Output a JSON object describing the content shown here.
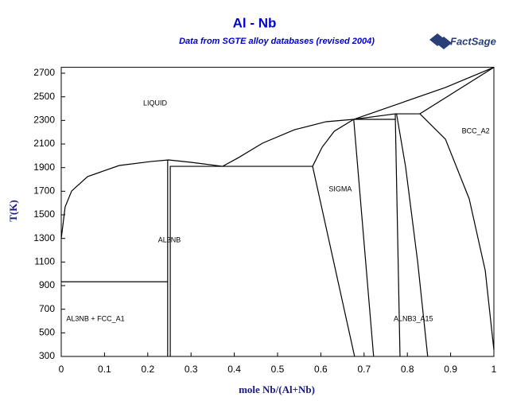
{
  "chart_data": {
    "type": "line",
    "title": "Al - Nb",
    "subtitle": "Data from SGTE alloy databases (revised 2004)",
    "logo": "FactSage",
    "x_label": "mole Nb/(Al+Nb)",
    "y_label": "T(K)",
    "xlim": [
      0,
      1
    ],
    "xticks": [
      0,
      0.1,
      0.2,
      0.3,
      0.4,
      0.5,
      0.6,
      0.7,
      0.8,
      0.9,
      1
    ],
    "ylim": [
      300,
      2750
    ],
    "yticks": [
      300,
      500,
      700,
      900,
      1100,
      1300,
      1500,
      1700,
      1900,
      2100,
      2300,
      2500,
      2700
    ],
    "line_color": "#000000",
    "series": [
      {
        "x": [
          0,
          0.009,
          0.024,
          0.061,
          0.134,
          0.208,
          0.248,
          0.3,
          0.373,
          0.41,
          0.465,
          0.539,
          0.612,
          0.676
        ],
        "values": [
          1298,
          1567,
          1702,
          1824,
          1918,
          1952,
          1965,
          1945,
          1911,
          1985,
          2107,
          2221,
          2289,
          2309
        ]
      },
      {
        "x": [
          0.676,
          0.772,
          0.829,
          1
        ],
        "values": [
          2309,
          2356,
          2356,
          2750
        ]
      },
      {
        "x": [
          0.676,
          0.888,
          1
        ],
        "values": [
          2309,
          2579,
          2750
        ]
      },
      {
        "x": [
          0.829,
          0.888,
          0.943,
          0.98,
          1
        ],
        "values": [
          2356,
          2141,
          1635,
          1028,
          354
        ]
      },
      {
        "x": [
          0.581,
          0.603,
          0.631,
          0.676
        ],
        "values": [
          1911,
          2073,
          2208,
          2309
        ]
      },
      {
        "x": [
          0.581,
          0.678
        ],
        "values": [
          1911,
          300
        ]
      },
      {
        "x": [
          0.676,
          0.722
        ],
        "values": [
          2309,
          300
        ]
      },
      {
        "x": [
          0.676,
          0.772
        ],
        "values": [
          2309,
          2309
        ]
      },
      {
        "x": [
          0.772,
          0.783
        ],
        "values": [
          2356,
          300
        ]
      },
      {
        "x": [
          0.775,
          0.796,
          0.824,
          0.847
        ],
        "values": [
          2356,
          1905,
          1096,
          300
        ]
      },
      {
        "x": [
          0.251,
          0.581
        ],
        "values": [
          1911,
          1911
        ]
      },
      {
        "x": [
          0,
          0.246
        ],
        "values": [
          933,
          933
        ]
      },
      {
        "x": [
          0.246,
          0.246
        ],
        "values": [
          300,
          1965
        ]
      },
      {
        "x": [
          0.252,
          0.252
        ],
        "values": [
          300,
          1911
        ]
      }
    ],
    "annotations": [
      {
        "text": "LIQUID",
        "x": 0.217,
        "y": 2444
      },
      {
        "text": "AL3NB",
        "x": 0.25,
        "y": 1284
      },
      {
        "text": "AL3NB + FCC_A1",
        "x": 0.079,
        "y": 617
      },
      {
        "text": "SIGMA",
        "x": 0.645,
        "y": 1716
      },
      {
        "text": "ALNB3_A15",
        "x": 0.814,
        "y": 617
      },
      {
        "text": "BCC_A2",
        "x": 0.958,
        "y": 2208
      }
    ]
  }
}
